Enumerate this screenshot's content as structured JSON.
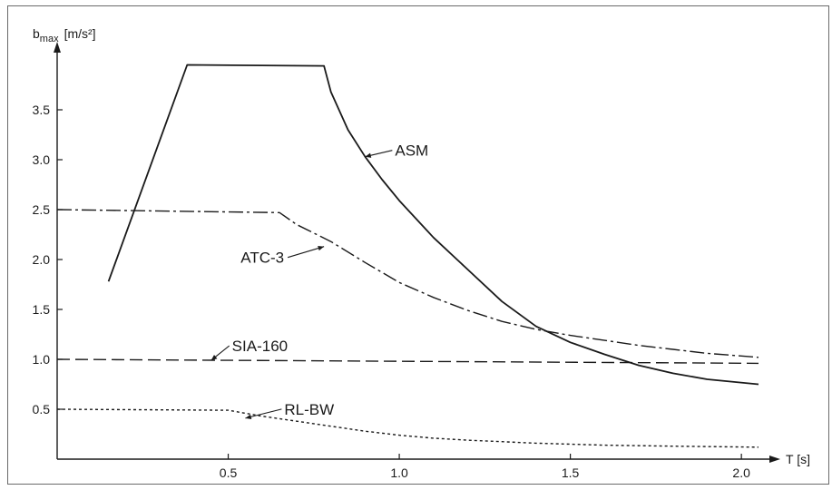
{
  "chart_data": {
    "type": "line",
    "xlabel": "T [s]",
    "ylabel_main": "b",
    "ylabel_sub": "max",
    "ylabel_unit": "[m/s²]",
    "xlim": [
      0,
      2.05
    ],
    "ylim": [
      0,
      4.0
    ],
    "x_ticks": [
      {
        "value": 0.5,
        "label": "0.5"
      },
      {
        "value": 1.0,
        "label": "1.0"
      },
      {
        "value": 1.5,
        "label": "1.5"
      },
      {
        "value": 2.0,
        "label": "2.0"
      }
    ],
    "y_ticks": [
      {
        "value": 0.5,
        "label": "0.5"
      },
      {
        "value": 1.0,
        "label": "1.0"
      },
      {
        "value": 1.5,
        "label": "1.5"
      },
      {
        "value": 2.0,
        "label": "2.0"
      },
      {
        "value": 2.5,
        "label": "2.5"
      },
      {
        "value": 3.0,
        "label": "3.0"
      },
      {
        "value": 3.5,
        "label": "3.5"
      }
    ],
    "grid": false,
    "legend": "none",
    "series": [
      {
        "name": "ASM",
        "line_style": "solid",
        "points": [
          [
            0.15,
            1.78
          ],
          [
            0.38,
            3.95
          ],
          [
            0.78,
            3.94
          ],
          [
            0.8,
            3.68
          ],
          [
            0.85,
            3.3
          ],
          [
            0.9,
            3.03
          ],
          [
            0.95,
            2.8
          ],
          [
            1.0,
            2.59
          ],
          [
            1.1,
            2.22
          ],
          [
            1.2,
            1.9
          ],
          [
            1.3,
            1.58
          ],
          [
            1.4,
            1.33
          ],
          [
            1.5,
            1.17
          ],
          [
            1.6,
            1.05
          ],
          [
            1.7,
            0.94
          ],
          [
            1.8,
            0.86
          ],
          [
            1.9,
            0.8
          ],
          [
            2.05,
            0.75
          ]
        ]
      },
      {
        "name": "ATC-3",
        "line_style": "dashdot",
        "points": [
          [
            0.0,
            2.5
          ],
          [
            0.65,
            2.47
          ],
          [
            0.7,
            2.35
          ],
          [
            0.8,
            2.18
          ],
          [
            0.9,
            1.97
          ],
          [
            1.0,
            1.77
          ],
          [
            1.1,
            1.62
          ],
          [
            1.2,
            1.49
          ],
          [
            1.3,
            1.38
          ],
          [
            1.4,
            1.3
          ],
          [
            1.5,
            1.24
          ],
          [
            1.6,
            1.19
          ],
          [
            1.7,
            1.14
          ],
          [
            1.8,
            1.1
          ],
          [
            1.9,
            1.06
          ],
          [
            2.05,
            1.02
          ]
        ]
      },
      {
        "name": "SIA-160",
        "line_style": "dashed",
        "points": [
          [
            0.0,
            1.0
          ],
          [
            2.05,
            0.96
          ]
        ]
      },
      {
        "name": "RL-BW",
        "line_style": "dotted",
        "points": [
          [
            0.0,
            0.5
          ],
          [
            0.5,
            0.49
          ],
          [
            0.6,
            0.43
          ],
          [
            0.7,
            0.38
          ],
          [
            0.8,
            0.33
          ],
          [
            0.9,
            0.28
          ],
          [
            1.0,
            0.24
          ],
          [
            1.1,
            0.21
          ],
          [
            1.2,
            0.19
          ],
          [
            1.4,
            0.16
          ],
          [
            1.6,
            0.14
          ],
          [
            1.8,
            0.13
          ],
          [
            2.05,
            0.12
          ]
        ]
      }
    ],
    "annotations": [
      {
        "series": "ASM",
        "text": "ASM",
        "at": [
          0.9,
          3.03
        ]
      },
      {
        "series": "ATC-3",
        "text": "ATC-3",
        "at": [
          0.78,
          2.13
        ]
      },
      {
        "series": "SIA-160",
        "text": "SIA-160",
        "at": [
          0.45,
          0.99
        ]
      },
      {
        "series": "RL-BW",
        "text": "RL-BW",
        "at": [
          0.55,
          0.41
        ]
      }
    ]
  }
}
